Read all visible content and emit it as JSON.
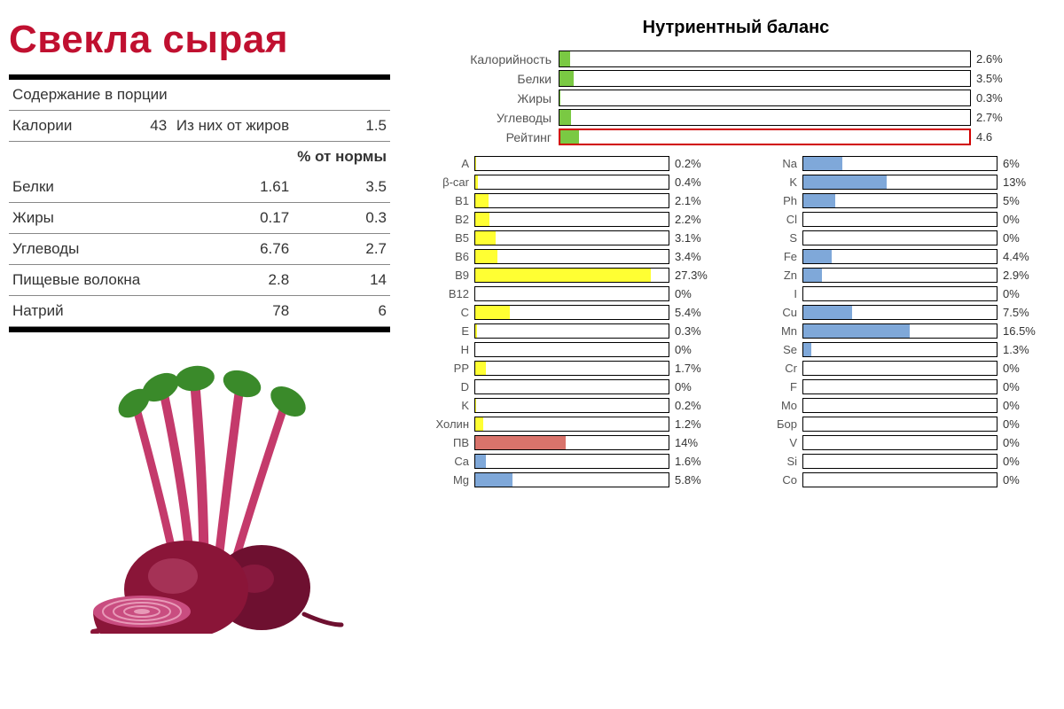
{
  "title": "Свекла сырая",
  "nutrition_table": {
    "portion_header": "Содержание в порции",
    "calories_label": "Калории",
    "calories_value": "43",
    "from_fat_label": "Из них от жиров",
    "from_fat_value": "1.5",
    "pct_norm_header": "% от нормы",
    "rows": [
      {
        "name": "Белки",
        "value": "1.61",
        "pct": "3.5"
      },
      {
        "name": "Жиры",
        "value": "0.17",
        "pct": "0.3"
      },
      {
        "name": "Углеводы",
        "value": "6.76",
        "pct": "2.7"
      },
      {
        "name": "Пищевые волокна",
        "value": "2.8",
        "pct": "14"
      },
      {
        "name": "Натрий",
        "value": "78",
        "pct": "6"
      }
    ]
  },
  "chart_title": "Нутриентный баланс",
  "macros": {
    "bar_color": "#7ac943",
    "highlight_border": "#d00000",
    "rows": [
      {
        "label": "Калорийность",
        "pct": 2.6,
        "display": "2.6%",
        "highlight": false
      },
      {
        "label": "Белки",
        "pct": 3.5,
        "display": "3.5%",
        "highlight": false
      },
      {
        "label": "Жиры",
        "pct": 0.3,
        "display": "0.3%",
        "highlight": false
      },
      {
        "label": "Углеводы",
        "pct": 2.7,
        "display": "2.7%",
        "highlight": false
      },
      {
        "label": "Рейтинг",
        "pct": 4.6,
        "display": "4.6",
        "highlight": true
      }
    ]
  },
  "micros": {
    "max_scale": 30,
    "left": [
      {
        "label": "A",
        "pct": 0.2,
        "display": "0.2%",
        "color": "#ffff33"
      },
      {
        "label": "β-car",
        "pct": 0.4,
        "display": "0.4%",
        "color": "#ffff33"
      },
      {
        "label": "B1",
        "pct": 2.1,
        "display": "2.1%",
        "color": "#ffff33"
      },
      {
        "label": "B2",
        "pct": 2.2,
        "display": "2.2%",
        "color": "#ffff33"
      },
      {
        "label": "B5",
        "pct": 3.1,
        "display": "3.1%",
        "color": "#ffff33"
      },
      {
        "label": "B6",
        "pct": 3.4,
        "display": "3.4%",
        "color": "#ffff33"
      },
      {
        "label": "B9",
        "pct": 27.3,
        "display": "27.3%",
        "color": "#ffff33"
      },
      {
        "label": "B12",
        "pct": 0,
        "display": "0%",
        "color": "#ffff33"
      },
      {
        "label": "C",
        "pct": 5.4,
        "display": "5.4%",
        "color": "#ffff33"
      },
      {
        "label": "E",
        "pct": 0.3,
        "display": "0.3%",
        "color": "#ffff33"
      },
      {
        "label": "H",
        "pct": 0,
        "display": "0%",
        "color": "#ffff33"
      },
      {
        "label": "PP",
        "pct": 1.7,
        "display": "1.7%",
        "color": "#ffff33"
      },
      {
        "label": "D",
        "pct": 0,
        "display": "0%",
        "color": "#ffff33"
      },
      {
        "label": "K",
        "pct": 0.2,
        "display": "0.2%",
        "color": "#ffff33"
      },
      {
        "label": "Холин",
        "pct": 1.2,
        "display": "1.2%",
        "color": "#ffff33"
      },
      {
        "label": "ПВ",
        "pct": 14,
        "display": "14%",
        "color": "#d9736b"
      },
      {
        "label": "Ca",
        "pct": 1.6,
        "display": "1.6%",
        "color": "#7fa8d9"
      },
      {
        "label": "Mg",
        "pct": 5.8,
        "display": "5.8%",
        "color": "#7fa8d9"
      }
    ],
    "right": [
      {
        "label": "Na",
        "pct": 6,
        "display": "6%",
        "color": "#7fa8d9"
      },
      {
        "label": "K",
        "pct": 13,
        "display": "13%",
        "color": "#7fa8d9"
      },
      {
        "label": "Ph",
        "pct": 5,
        "display": "5%",
        "color": "#7fa8d9"
      },
      {
        "label": "Cl",
        "pct": 0,
        "display": "0%",
        "color": "#7fa8d9"
      },
      {
        "label": "S",
        "pct": 0,
        "display": "0%",
        "color": "#7fa8d9"
      },
      {
        "label": "Fe",
        "pct": 4.4,
        "display": "4.4%",
        "color": "#7fa8d9"
      },
      {
        "label": "Zn",
        "pct": 2.9,
        "display": "2.9%",
        "color": "#7fa8d9"
      },
      {
        "label": "I",
        "pct": 0,
        "display": "0%",
        "color": "#7fa8d9"
      },
      {
        "label": "Cu",
        "pct": 7.5,
        "display": "7.5%",
        "color": "#7fa8d9"
      },
      {
        "label": "Mn",
        "pct": 16.5,
        "display": "16.5%",
        "color": "#7fa8d9"
      },
      {
        "label": "Se",
        "pct": 1.3,
        "display": "1.3%",
        "color": "#7fa8d9"
      },
      {
        "label": "Cr",
        "pct": 0,
        "display": "0%",
        "color": "#7fa8d9"
      },
      {
        "label": "F",
        "pct": 0,
        "display": "0%",
        "color": "#7fa8d9"
      },
      {
        "label": "Mo",
        "pct": 0,
        "display": "0%",
        "color": "#7fa8d9"
      },
      {
        "label": "Бор",
        "pct": 0,
        "display": "0%",
        "color": "#7fa8d9"
      },
      {
        "label": "V",
        "pct": 0,
        "display": "0%",
        "color": "#7fa8d9"
      },
      {
        "label": "Si",
        "pct": 0,
        "display": "0%",
        "color": "#7fa8d9"
      },
      {
        "label": "Co",
        "pct": 0,
        "display": "0%",
        "color": "#7fa8d9"
      }
    ]
  },
  "beet_colors": {
    "root": "#8a1538",
    "root_highlight": "#b8466a",
    "stem": "#c43a6b",
    "leaf": "#3a8a2a",
    "flesh_ring": "#d96c9a"
  }
}
